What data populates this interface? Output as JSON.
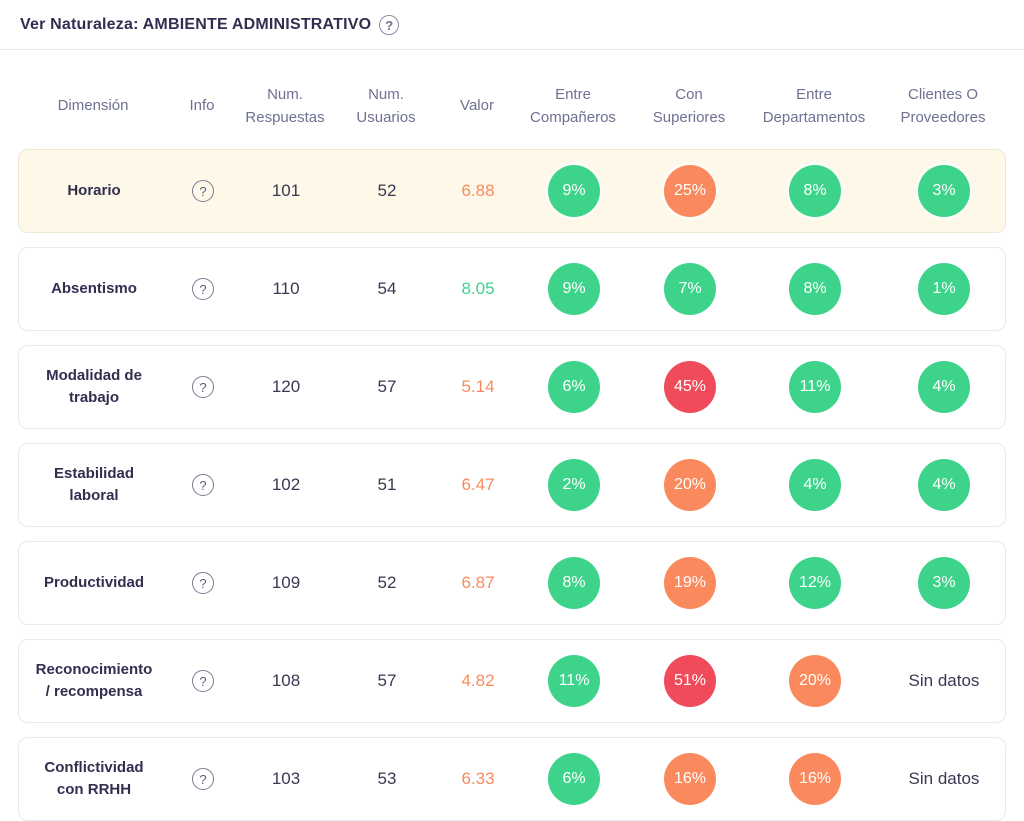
{
  "colors": {
    "good": "#3ed38a",
    "warn": "#fa8a5e",
    "bad": "#f04b5b",
    "highlight-bg": "#fdf8e8",
    "text-dark": "#312e4f",
    "text-muted": "#6e7191",
    "border": "#e9e9f3"
  },
  "icons": {
    "help": "?"
  },
  "header": {
    "title": "Ver Naturaleza: AMBIENTE ADMINISTRATIVO"
  },
  "table": {
    "columns": [
      "Dimensión",
      "Info",
      "Num. Respuestas",
      "Num. Usuarios",
      "Valor",
      "Entre Compañeros",
      "Con Superiores",
      "Entre Departamentos",
      "Clientes O Proveedores"
    ],
    "rows": [
      {
        "dimension": "Horario",
        "highlighted": true,
        "respuestas": "101",
        "usuarios": "52",
        "valor": "6.88",
        "valor_level": "warn",
        "cells": [
          {
            "type": "badge",
            "value": "9%",
            "level": "good"
          },
          {
            "type": "badge",
            "value": "25%",
            "level": "warn"
          },
          {
            "type": "badge",
            "value": "8%",
            "level": "good"
          },
          {
            "type": "badge",
            "value": "3%",
            "level": "good"
          }
        ]
      },
      {
        "dimension": "Absentismo",
        "highlighted": false,
        "respuestas": "110",
        "usuarios": "54",
        "valor": "8.05",
        "valor_level": "good",
        "cells": [
          {
            "type": "badge",
            "value": "9%",
            "level": "good"
          },
          {
            "type": "badge",
            "value": "7%",
            "level": "good"
          },
          {
            "type": "badge",
            "value": "8%",
            "level": "good"
          },
          {
            "type": "badge",
            "value": "1%",
            "level": "good"
          }
        ]
      },
      {
        "dimension": "Modalidad de trabajo",
        "highlighted": false,
        "respuestas": "120",
        "usuarios": "57",
        "valor": "5.14",
        "valor_level": "warn",
        "cells": [
          {
            "type": "badge",
            "value": "6%",
            "level": "good"
          },
          {
            "type": "badge",
            "value": "45%",
            "level": "bad"
          },
          {
            "type": "badge",
            "value": "11%",
            "level": "good"
          },
          {
            "type": "badge",
            "value": "4%",
            "level": "good"
          }
        ]
      },
      {
        "dimension": "Estabilidad laboral",
        "highlighted": false,
        "respuestas": "102",
        "usuarios": "51",
        "valor": "6.47",
        "valor_level": "warn",
        "cells": [
          {
            "type": "badge",
            "value": "2%",
            "level": "good"
          },
          {
            "type": "badge",
            "value": "20%",
            "level": "warn"
          },
          {
            "type": "badge",
            "value": "4%",
            "level": "good"
          },
          {
            "type": "badge",
            "value": "4%",
            "level": "good"
          }
        ]
      },
      {
        "dimension": "Productividad",
        "highlighted": false,
        "respuestas": "109",
        "usuarios": "52",
        "valor": "6.87",
        "valor_level": "warn",
        "cells": [
          {
            "type": "badge",
            "value": "8%",
            "level": "good"
          },
          {
            "type": "badge",
            "value": "19%",
            "level": "warn"
          },
          {
            "type": "badge",
            "value": "12%",
            "level": "good"
          },
          {
            "type": "badge",
            "value": "3%",
            "level": "good"
          }
        ]
      },
      {
        "dimension": "Reconocimiento / recompensa",
        "highlighted": false,
        "respuestas": "108",
        "usuarios": "57",
        "valor": "4.82",
        "valor_level": "warn",
        "cells": [
          {
            "type": "badge",
            "value": "11%",
            "level": "good"
          },
          {
            "type": "badge",
            "value": "51%",
            "level": "bad"
          },
          {
            "type": "badge",
            "value": "20%",
            "level": "warn"
          },
          {
            "type": "text",
            "value": "Sin datos"
          }
        ]
      },
      {
        "dimension": "Conflictividad con RRHH",
        "highlighted": false,
        "respuestas": "103",
        "usuarios": "53",
        "valor": "6.33",
        "valor_level": "warn",
        "cells": [
          {
            "type": "badge",
            "value": "6%",
            "level": "good"
          },
          {
            "type": "badge",
            "value": "16%",
            "level": "warn"
          },
          {
            "type": "badge",
            "value": "16%",
            "level": "warn"
          },
          {
            "type": "text",
            "value": "Sin datos"
          }
        ]
      }
    ]
  }
}
